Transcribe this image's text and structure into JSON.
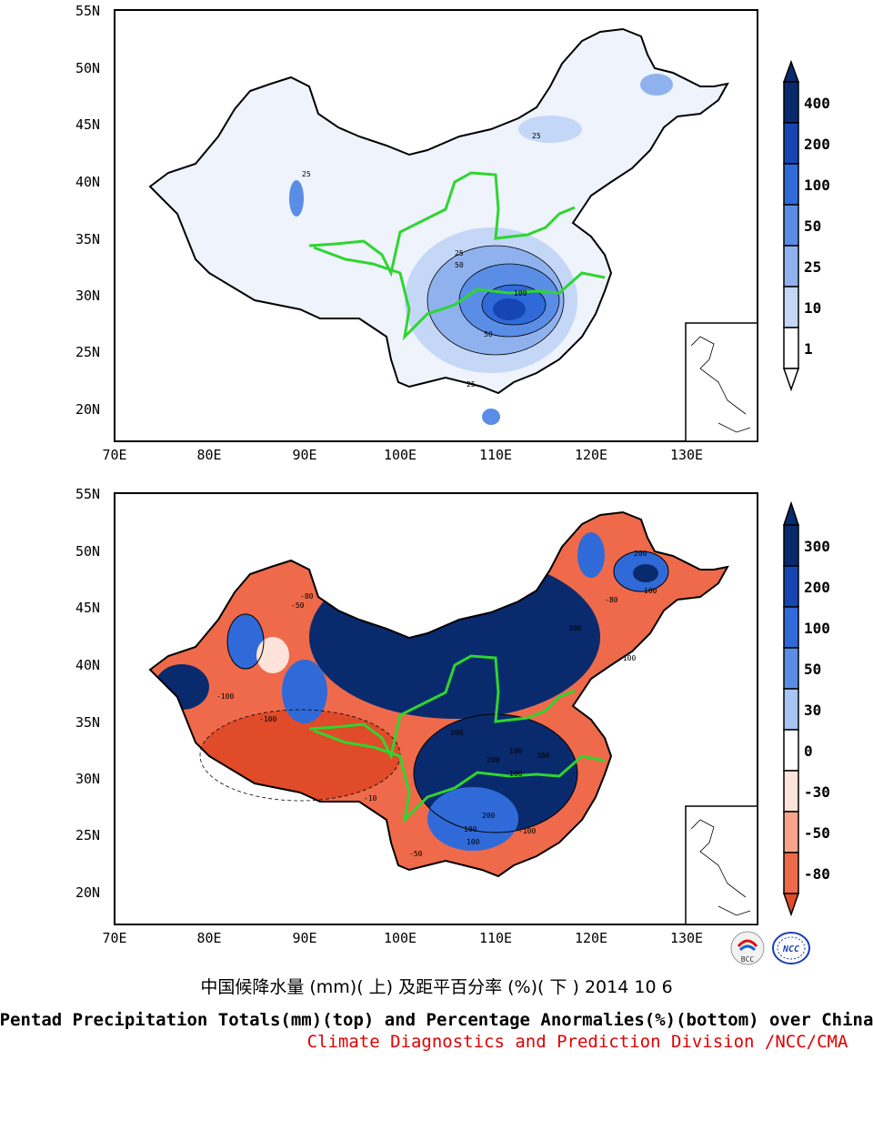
{
  "top_map": {
    "lat_labels": [
      "55N",
      "50N",
      "45N",
      "40N",
      "35N",
      "30N",
      "25N",
      "20N"
    ],
    "lon_labels": [
      "70E",
      "80E",
      "90E",
      "100E",
      "110E",
      "120E",
      "130E"
    ],
    "contour_labels": [
      "25",
      "25",
      "25",
      "50",
      "100",
      "50",
      "25"
    ],
    "legend": {
      "levels": [
        "400",
        "200",
        "100",
        "50",
        "25",
        "10",
        "1"
      ],
      "colors": [
        "#0a2a6e",
        "#1546b4",
        "#2f6ad8",
        "#5a8ee6",
        "#8fb2ef",
        "#c4d7f7",
        "#ffffff"
      ]
    }
  },
  "bottom_map": {
    "lat_labels": [
      "55N",
      "50N",
      "45N",
      "40N",
      "35N",
      "30N",
      "25N",
      "20N"
    ],
    "lon_labels": [
      "70E",
      "80E",
      "90E",
      "100E",
      "110E",
      "120E",
      "130E"
    ],
    "contour_labels": [
      "300",
      "200",
      "100",
      "100",
      "300",
      "200",
      "100",
      "-100",
      "-50",
      "-80",
      "-100",
      "-10",
      "-100",
      "300",
      "100",
      "-80",
      "-50",
      "-100",
      "200",
      "100"
    ],
    "legend": {
      "levels": [
        "300",
        "200",
        "100",
        "50",
        "30",
        "0",
        "-30",
        "-50",
        "-80"
      ],
      "colors": [
        "#0a2a6e",
        "#1546b4",
        "#2f6ad8",
        "#5a8ee6",
        "#a7c4f2",
        "#ffffff",
        "#fde3d9",
        "#f6a58c",
        "#ee6a4a",
        "#e04b2a"
      ]
    }
  },
  "logos": {
    "left": "BCC",
    "right": "NCC"
  },
  "captions": {
    "chinese": "中国候降水量 (mm)( 上) 及距平百分率 (%)( 下 ) 2014 10 6",
    "english": "Pentad Precipitation Totals(mm)(top) and Percentage Anormalies(%)(bottom) over China",
    "org": "Climate Diagnostics and Prediction Division /NCC/CMA"
  }
}
